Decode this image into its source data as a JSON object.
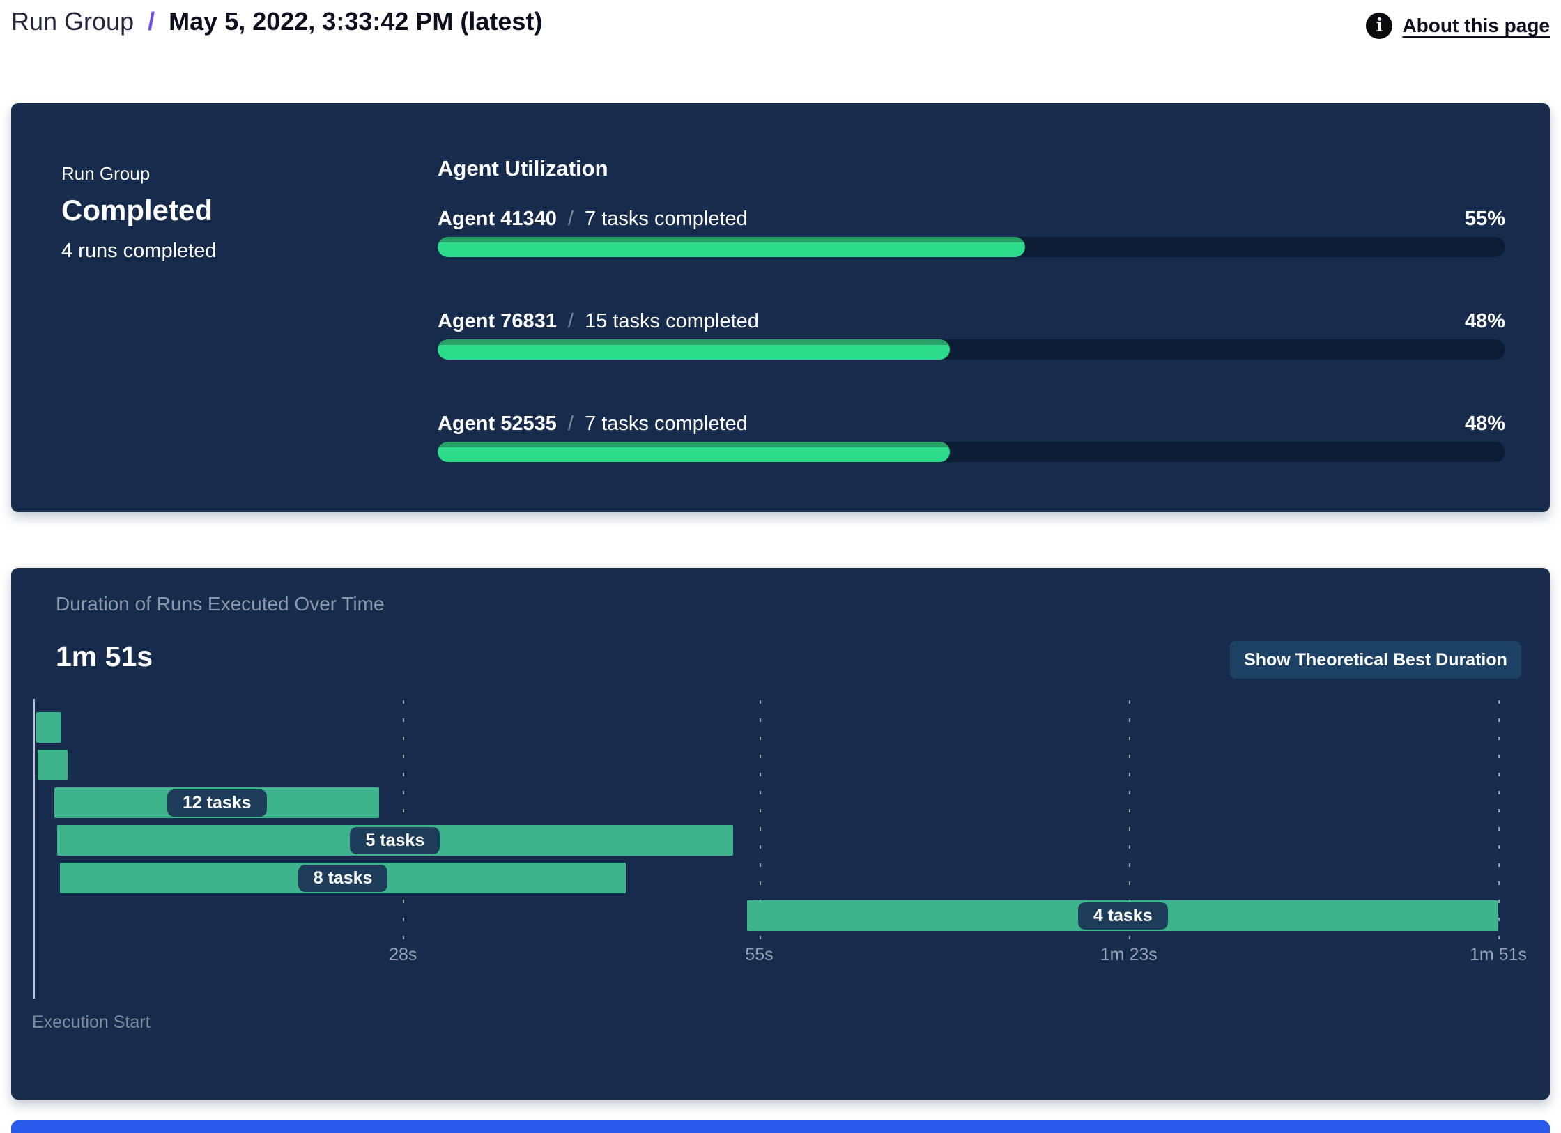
{
  "header": {
    "breadcrumb": "Run Group",
    "separator": "/",
    "title": "May 5, 2022, 3:33:42 PM (latest)",
    "about": {
      "icon": "i",
      "label": "About this page"
    }
  },
  "colors": {
    "panel_bg": "#172b4d",
    "track_bg": "#0d1c35",
    "progress_green": "#2ddc8a",
    "progress_green_dark": "#27a165",
    "gantt_green": "#3db48c",
    "pill_bg": "#1d3c59",
    "button_bg": "#1c4165",
    "accent_purple": "#6d4aea",
    "muted_text": "#8c98ab",
    "next_panel_blue": "#2b5bec"
  },
  "run_group_panel": {
    "label": "Run Group",
    "status": "Completed",
    "runs_completed": "4 runs completed",
    "agent_utilization": {
      "title": "Agent Utilization",
      "separator": "/",
      "agents": [
        {
          "name": "Agent 41340",
          "tasks_completed": "7 tasks completed",
          "percent_label": "55%",
          "percent": 55
        },
        {
          "name": "Agent 76831",
          "tasks_completed": "15 tasks completed",
          "percent_label": "48%",
          "percent": 48
        },
        {
          "name": "Agent 52535",
          "tasks_completed": "7 tasks completed",
          "percent_label": "48%",
          "percent": 48
        }
      ]
    }
  },
  "duration_panel": {
    "title": "Duration of Runs Executed Over Time",
    "total_duration": "1m 51s",
    "button_label": "Show Theoretical Best Duration",
    "origin_label": "Execution Start"
  },
  "chart_data": {
    "type": "gantt",
    "title": "Duration of Runs Executed Over Time",
    "total_duration_label": "1m 51s",
    "total_duration_seconds": 111,
    "grid": "dashed-vertical",
    "x_axis": {
      "ticks_seconds": [
        28,
        55,
        83,
        111
      ],
      "tick_labels": [
        "28s",
        "55s",
        "1m 23s",
        "1m 51s"
      ],
      "origin_label": "Execution Start"
    },
    "bars": [
      {
        "row": 0,
        "start_s": 0.2,
        "end_s": 2.1,
        "label": null
      },
      {
        "row": 1,
        "start_s": 0.3,
        "end_s": 2.6,
        "label": null
      },
      {
        "row": 2,
        "start_s": 1.6,
        "end_s": 26.2,
        "label": "12 tasks"
      },
      {
        "row": 3,
        "start_s": 1.8,
        "end_s": 53.0,
        "label": "5 tasks"
      },
      {
        "row": 4,
        "start_s": 2.0,
        "end_s": 44.9,
        "label": "8 tasks"
      },
      {
        "row": 5,
        "start_s": 54.1,
        "end_s": 111.0,
        "label": "4 tasks"
      }
    ]
  }
}
